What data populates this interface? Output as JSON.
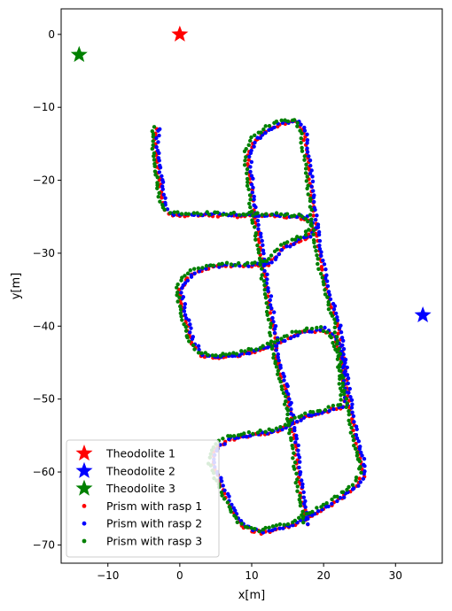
{
  "chart_data": {
    "type": "scatter",
    "title": "",
    "xlabel": "x[m]",
    "ylabel": "y[m]",
    "xlim": [
      -16.5,
      36.5
    ],
    "ylim": [
      -72.5,
      3.5
    ],
    "xticks": [
      -10,
      0,
      10,
      20,
      30
    ],
    "yticks": [
      0,
      -10,
      -20,
      -30,
      -40,
      -50,
      -60,
      -70
    ],
    "grid": false,
    "legend_position": "lower-left",
    "markers": [
      {
        "name": "Theodolite 1",
        "color": "#ff0000",
        "x": 0,
        "y": 0
      },
      {
        "name": "Theodolite 2",
        "color": "#0000ff",
        "x": 33.8,
        "y": -38.5
      },
      {
        "name": "Theodolite 3",
        "color": "#008000",
        "x": -14,
        "y": -2.8
      }
    ],
    "series": [
      {
        "name": "Prism with rasp 1",
        "color": "#ff0000",
        "offset": [
          0.0,
          0.0
        ]
      },
      {
        "name": "Prism with rasp 2",
        "color": "#0000ff",
        "offset": [
          0.25,
          0.15
        ]
      },
      {
        "name": "Prism with rasp 3",
        "color": "#008000",
        "offset": [
          -0.45,
          0.3
        ]
      }
    ],
    "trajectory": [
      [
        -3.2,
        -13
      ],
      [
        -3.4,
        -15
      ],
      [
        -3.2,
        -17.5
      ],
      [
        -2.8,
        -20
      ],
      [
        -2.4,
        -22.5
      ],
      [
        -2.0,
        -24.2
      ],
      [
        -1.0,
        -24.8
      ],
      [
        3,
        -24.8
      ],
      [
        8,
        -24.9
      ],
      [
        12,
        -24.9
      ],
      [
        15,
        -25.0
      ],
      [
        17.5,
        -25.2
      ],
      [
        18.6,
        -26.5
      ],
      [
        17.8,
        -27.8
      ],
      [
        16.5,
        -28.3
      ],
      [
        14.5,
        -29.3
      ],
      [
        12.5,
        -31.5
      ],
      [
        10,
        -31.8
      ],
      [
        7,
        -31.8
      ],
      [
        4,
        -32
      ],
      [
        1.5,
        -33
      ],
      [
        0,
        -35
      ],
      [
        0.4,
        -37.5
      ],
      [
        1.0,
        -40
      ],
      [
        1.8,
        -42.5
      ],
      [
        3,
        -44
      ],
      [
        5.5,
        -44.3
      ],
      [
        8,
        -44.1
      ],
      [
        10,
        -43.6
      ],
      [
        11.5,
        -43.2
      ],
      [
        13.5,
        -42.5
      ],
      [
        16.5,
        -41
      ],
      [
        20,
        -40.5
      ],
      [
        21.5,
        -41.5
      ],
      [
        22.3,
        -44
      ],
      [
        22.7,
        -47
      ],
      [
        22.9,
        -51
      ],
      [
        20,
        -51.8
      ],
      [
        17.5,
        -52.5
      ],
      [
        15.5,
        -53.5
      ],
      [
        13.5,
        -54.5
      ],
      [
        10,
        -55.0
      ],
      [
        7,
        -55.5
      ],
      [
        5,
        -56.8
      ],
      [
        4.5,
        -59
      ],
      [
        5.8,
        -62
      ],
      [
        7.2,
        -65
      ],
      [
        8.5,
        -67.2
      ],
      [
        10,
        -68
      ],
      [
        11.5,
        -68.3
      ],
      [
        13,
        -68
      ],
      [
        15,
        -67.5
      ],
      [
        17.5,
        -66.5
      ],
      [
        20,
        -65
      ],
      [
        22.5,
        -63.5
      ],
      [
        24.5,
        -62
      ],
      [
        25.5,
        -60.5
      ],
      [
        25.2,
        -58
      ],
      [
        24.5,
        -55.5
      ],
      [
        23.8,
        -52
      ],
      [
        23.2,
        -48
      ],
      [
        22.6,
        -44
      ],
      [
        22.0,
        -40
      ],
      [
        21.0,
        -37
      ],
      [
        20.0,
        -33
      ],
      [
        19.3,
        -29.5
      ],
      [
        18.8,
        -25.5
      ],
      [
        18.3,
        -21.5
      ],
      [
        17.8,
        -17.5
      ],
      [
        17.3,
        -14
      ],
      [
        16.5,
        -12
      ],
      [
        14,
        -12.2
      ],
      [
        12.5,
        -13
      ],
      [
        10.5,
        -14.5
      ],
      [
        9.5,
        -16.5
      ],
      [
        9.8,
        -20
      ],
      [
        10.3,
        -24
      ],
      [
        11,
        -28
      ],
      [
        11.6,
        -32
      ],
      [
        12.3,
        -36
      ],
      [
        13,
        -40
      ],
      [
        13.4,
        -44
      ],
      [
        14.2,
        -47
      ],
      [
        15,
        -50
      ],
      [
        15.5,
        -53
      ],
      [
        16,
        -56
      ],
      [
        16.5,
        -60
      ],
      [
        17,
        -63.5
      ],
      [
        17.7,
        -67.2
      ]
    ]
  }
}
